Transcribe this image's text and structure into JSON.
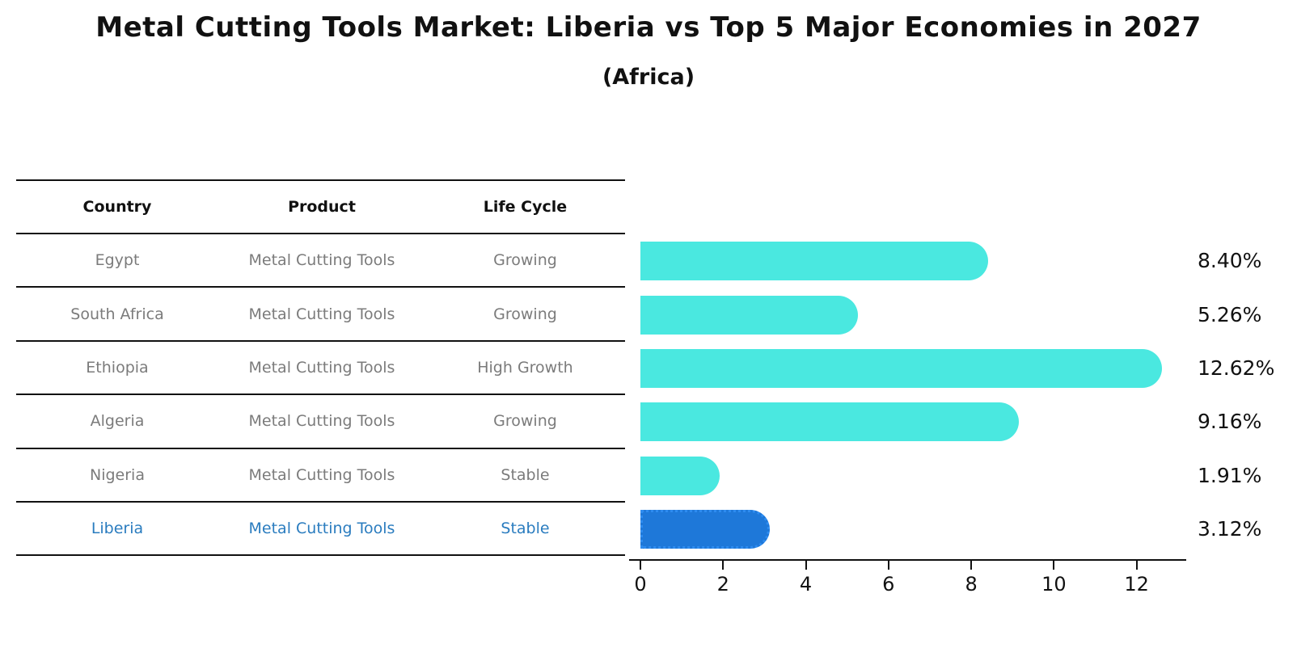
{
  "title": "Metal Cutting Tools Market: Liberia vs Top 5 Major Economies in 2027",
  "subtitle": "(Africa)",
  "table": {
    "headers": [
      "Country",
      "Product",
      "Life Cycle"
    ],
    "rows": [
      {
        "country": "Egypt",
        "product": "Metal Cutting Tools",
        "life_cycle": "Growing"
      },
      {
        "country": "South Africa",
        "product": "Metal Cutting Tools",
        "life_cycle": "Growing"
      },
      {
        "country": "Ethiopia",
        "product": "Metal Cutting Tools",
        "life_cycle": "High Growth"
      },
      {
        "country": "Algeria",
        "product": "Metal Cutting Tools",
        "life_cycle": "Growing"
      },
      {
        "country": "Nigeria",
        "product": "Metal Cutting Tools",
        "life_cycle": "Stable"
      },
      {
        "country": "Liberia",
        "product": "Metal Cutting Tools",
        "life_cycle": "Stable"
      }
    ]
  },
  "chart_data": {
    "type": "bar",
    "orientation": "horizontal",
    "title": "Metal Cutting Tools Market: Liberia vs Top 5 Major Economies in 2027",
    "subtitle": "(Africa)",
    "categories": [
      "Egypt",
      "South Africa",
      "Ethiopia",
      "Algeria",
      "Nigeria",
      "Liberia"
    ],
    "values": [
      8.4,
      5.26,
      12.62,
      9.16,
      1.91,
      3.12
    ],
    "value_labels": [
      "8.40%",
      "5.26%",
      "12.62%",
      "9.16%",
      "1.91%",
      "3.12%"
    ],
    "x_ticks": [
      "0",
      "2",
      "4",
      "6",
      "8",
      "10",
      "12"
    ],
    "xlim": [
      0,
      13.2
    ],
    "grid": "off",
    "legend": "none",
    "bar_color": "#4AE8E0",
    "highlight_index": 5,
    "highlight_bar_color": "#1E78D9",
    "highlight_border_color": "#2E8CF0",
    "highlight_text_color": "#2a7cbf"
  }
}
